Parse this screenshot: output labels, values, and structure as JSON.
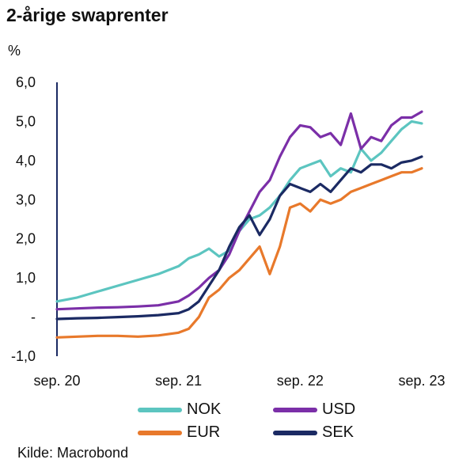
{
  "title": "2-årige swaprenter",
  "source": "Kilde: Macrobond",
  "chart_data": {
    "type": "line",
    "title": "2-årige swaprenter",
    "ylabel": "%",
    "ylim": [
      -1,
      6
    ],
    "y_ticks": [
      6,
      5,
      4,
      3,
      2,
      1,
      0,
      -1
    ],
    "y_tick_labels": [
      "6,0",
      "5,0",
      "4,0",
      "3,0",
      "2,0",
      "1,0",
      "-",
      "-1,0"
    ],
    "x_ticks": [
      0,
      12,
      24,
      36
    ],
    "x_tick_labels": [
      "sep. 20",
      "sep. 21",
      "sep. 22",
      "sep. 23"
    ],
    "x_note": "x in months since sep. 2020",
    "grid": false,
    "legend_position": "bottom",
    "series": [
      {
        "name": "NOK",
        "color": "#5cc5c0",
        "x": [
          0,
          2,
          4,
          6,
          8,
          10,
          12,
          13,
          14,
          15,
          16,
          17,
          18,
          19,
          20,
          21,
          22,
          23,
          24,
          25,
          26,
          27,
          28,
          29,
          30,
          31,
          32,
          33,
          34,
          35,
          36
        ],
        "y": [
          0.4,
          0.5,
          0.65,
          0.8,
          0.95,
          1.1,
          1.3,
          1.5,
          1.6,
          1.75,
          1.55,
          1.7,
          2.2,
          2.5,
          2.6,
          2.8,
          3.1,
          3.5,
          3.8,
          3.9,
          4.0,
          3.6,
          3.8,
          3.7,
          4.3,
          4.0,
          4.2,
          4.5,
          4.8,
          5.0,
          4.95
        ]
      },
      {
        "name": "USD",
        "color": "#7b2fa8",
        "x": [
          0,
          2,
          4,
          6,
          8,
          10,
          12,
          13,
          14,
          15,
          16,
          17,
          18,
          19,
          20,
          21,
          22,
          23,
          24,
          25,
          26,
          27,
          28,
          29,
          30,
          31,
          32,
          33,
          34,
          35,
          36
        ],
        "y": [
          0.2,
          0.22,
          0.24,
          0.25,
          0.27,
          0.3,
          0.4,
          0.55,
          0.75,
          1.0,
          1.2,
          1.6,
          2.2,
          2.7,
          3.2,
          3.5,
          4.1,
          4.6,
          4.9,
          4.85,
          4.6,
          4.7,
          4.4,
          5.2,
          4.3,
          4.6,
          4.5,
          4.9,
          5.1,
          5.1,
          5.25
        ]
      },
      {
        "name": "EUR",
        "color": "#e8792b",
        "x": [
          0,
          2,
          4,
          6,
          8,
          10,
          12,
          13,
          14,
          15,
          16,
          17,
          18,
          19,
          20,
          21,
          22,
          23,
          24,
          25,
          26,
          27,
          28,
          29,
          30,
          31,
          32,
          33,
          34,
          35,
          36
        ],
        "y": [
          -0.52,
          -0.5,
          -0.48,
          -0.48,
          -0.5,
          -0.47,
          -0.4,
          -0.3,
          0.0,
          0.5,
          0.7,
          1.0,
          1.2,
          1.5,
          1.8,
          1.1,
          1.8,
          2.8,
          2.9,
          2.7,
          3.0,
          2.9,
          3.0,
          3.2,
          3.3,
          3.4,
          3.5,
          3.6,
          3.7,
          3.7,
          3.8
        ]
      },
      {
        "name": "SEK",
        "color": "#1b2a63",
        "x": [
          0,
          2,
          4,
          6,
          8,
          10,
          12,
          13,
          14,
          15,
          16,
          17,
          18,
          19,
          20,
          21,
          22,
          23,
          24,
          25,
          26,
          27,
          28,
          29,
          30,
          31,
          32,
          33,
          34,
          35,
          36
        ],
        "y": [
          -0.05,
          -0.03,
          -0.02,
          0.0,
          0.02,
          0.05,
          0.1,
          0.2,
          0.4,
          0.8,
          1.2,
          1.8,
          2.3,
          2.6,
          2.1,
          2.5,
          3.1,
          3.4,
          3.3,
          3.2,
          3.4,
          3.2,
          3.5,
          3.8,
          3.7,
          3.9,
          3.9,
          3.8,
          3.95,
          4.0,
          4.1
        ]
      }
    ]
  }
}
